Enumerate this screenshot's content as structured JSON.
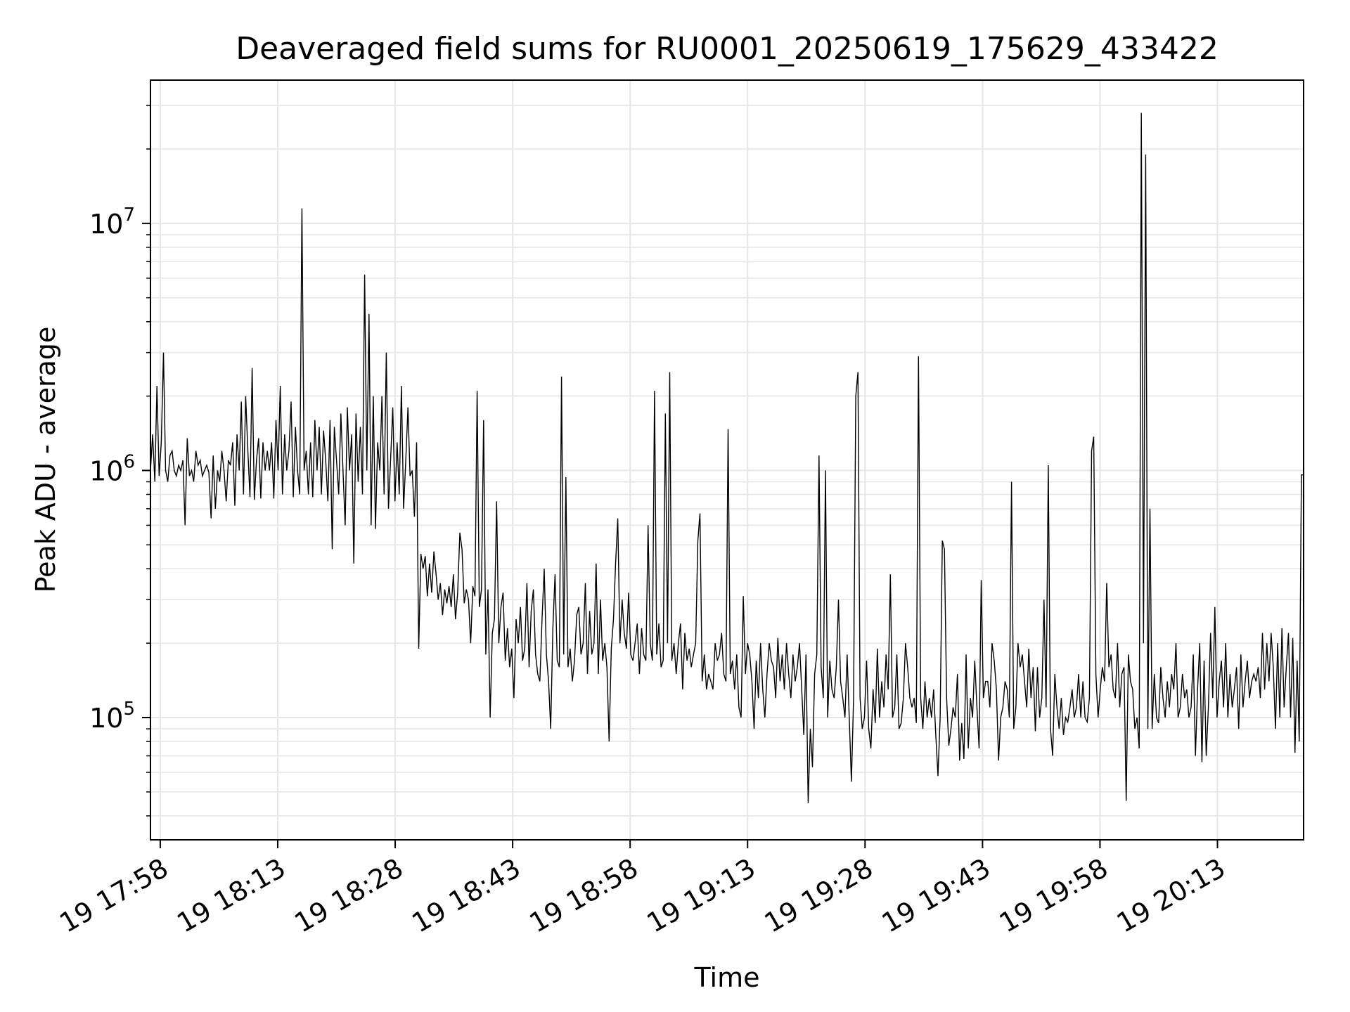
{
  "chart_data": {
    "type": "line",
    "title": "Deaveraged field sums for RU0001_20250619_175629_433422",
    "xlabel": "Time",
    "ylabel": "Peak ADU - average",
    "y_scale": "log",
    "ylim": [
      32000,
      38000000
    ],
    "xlim": [
      "2025-06-19 17:56:45",
      "2025-06-19 20:24:00"
    ],
    "grid": true,
    "line_color": "#000000",
    "x_ticks": [
      "19 17:58",
      "19 18:13",
      "19 18:28",
      "19 18:43",
      "19 18:58",
      "19 19:13",
      "19 19:28",
      "19 19:43",
      "19 19:58",
      "19 20:13"
    ],
    "y_ticks": [
      {
        "base": "10",
        "exp": "5"
      },
      {
        "base": "10",
        "exp": "6"
      },
      {
        "base": "10",
        "exp": "7"
      }
    ],
    "series": [
      {
        "x_start": "2025-06-19 17:56:45",
        "x_end": "2025-06-19 20:24:00",
        "values": [
          1000000,
          1400000,
          900000,
          2200000,
          950000,
          1300000,
          3000000,
          1000000,
          900000,
          1150000,
          1200000,
          1000000,
          950000,
          1050000,
          1000000,
          1100000,
          600000,
          1350000,
          950000,
          1000000,
          900000,
          1200000,
          1050000,
          1100000,
          950000,
          1000000,
          1050000,
          980000,
          640000,
          1150000,
          700000,
          1000000,
          900000,
          1200000,
          1000000,
          750000,
          1100000,
          1050000,
          1300000,
          720000,
          1400000,
          1000000,
          1900000,
          800000,
          2000000,
          1200000,
          780000,
          2600000,
          760000,
          1100000,
          1350000,
          770000,
          1300000,
          1000000,
          1200000,
          1000000,
          1300000,
          770000,
          1600000,
          1000000,
          2200000,
          800000,
          1400000,
          1000000,
          1200000,
          1900000,
          780000,
          1500000,
          1000000,
          800000,
          11500000,
          1000000,
          1200000,
          800000,
          1300000,
          780000,
          1600000,
          1000000,
          1500000,
          800000,
          1450000,
          1100000,
          750000,
          1600000,
          480000,
          1500000,
          1100000,
          800000,
          1700000,
          1000000,
          600000,
          1800000,
          1000000,
          1400000,
          420000,
          1700000,
          900000,
          1500000,
          800000,
          6200000,
          1000000,
          4300000,
          600000,
          2000000,
          580000,
          1300000,
          1000000,
          2000000,
          800000,
          3000000,
          700000,
          1100000,
          1800000,
          750000,
          1300000,
          800000,
          2200000,
          700000,
          1100000,
          1800000,
          950000,
          1000000,
          650000,
          1300000,
          190000,
          460000,
          400000,
          450000,
          310000,
          420000,
          320000,
          470000,
          380000,
          300000,
          350000,
          260000,
          330000,
          290000,
          340000,
          280000,
          380000,
          250000,
          320000,
          560000,
          480000,
          290000,
          330000,
          300000,
          200000,
          340000,
          310000,
          2100000,
          280000,
          330000,
          1600000,
          180000,
          330000,
          100000,
          220000,
          250000,
          750000,
          200000,
          280000,
          320000,
          170000,
          230000,
          160000,
          190000,
          120000,
          250000,
          200000,
          280000,
          170000,
          190000,
          350000,
          160000,
          270000,
          330000,
          180000,
          150000,
          140000,
          250000,
          400000,
          180000,
          140000,
          90000,
          230000,
          380000,
          170000,
          160000,
          2400000,
          180000,
          940000,
          160000,
          190000,
          140000,
          170000,
          260000,
          280000,
          180000,
          200000,
          350000,
          150000,
          270000,
          180000,
          200000,
          420000,
          150000,
          300000,
          170000,
          200000,
          160000,
          80000,
          190000,
          250000,
          420000,
          640000,
          200000,
          300000,
          220000,
          190000,
          320000,
          180000,
          170000,
          200000,
          240000,
          150000,
          230000,
          180000,
          170000,
          600000,
          200000,
          170000,
          2100000,
          180000,
          240000,
          160000,
          170000,
          1700000,
          200000,
          2500000,
          170000,
          200000,
          150000,
          200000,
          240000,
          130000,
          220000,
          170000,
          190000,
          160000,
          180000,
          200000,
          520000,
          670000,
          140000,
          180000,
          130000,
          150000,
          140000,
          130000,
          200000,
          170000,
          180000,
          220000,
          150000,
          140000,
          1470000,
          150000,
          170000,
          130000,
          180000,
          110000,
          100000,
          310000,
          150000,
          200000,
          180000,
          140000,
          90000,
          170000,
          120000,
          200000,
          130000,
          100000,
          150000,
          200000,
          170000,
          160000,
          120000,
          210000,
          140000,
          180000,
          130000,
          200000,
          150000,
          120000,
          180000,
          140000,
          160000,
          200000,
          130000,
          85000,
          180000,
          45000,
          90000,
          63000,
          150000,
          180000,
          1150000,
          160000,
          120000,
          1000000,
          100000,
          170000,
          130000,
          120000,
          160000,
          300000,
          140000,
          120000,
          100000,
          180000,
          100000,
          55000,
          120000,
          2000000,
          2500000,
          120000,
          90000,
          100000,
          170000,
          90000,
          75000,
          130000,
          95000,
          190000,
          100000,
          140000,
          110000,
          180000,
          130000,
          380000,
          100000,
          110000,
          180000,
          90000,
          95000,
          120000,
          200000,
          160000,
          120000,
          110000,
          120000,
          95000,
          2900000,
          120000,
          90000,
          140000,
          100000,
          120000,
          100000,
          130000,
          85000,
          58000,
          100000,
          520000,
          480000,
          120000,
          77000,
          90000,
          110000,
          100000,
          150000,
          67000,
          95000,
          68000,
          180000,
          75000,
          120000,
          100000,
          170000,
          110000,
          75000,
          360000,
          120000,
          140000,
          140000,
          110000,
          200000,
          170000,
          130000,
          67000,
          100000,
          110000,
          140000,
          130000,
          100000,
          900000,
          90000,
          110000,
          200000,
          160000,
          180000,
          140000,
          110000,
          190000,
          120000,
          160000,
          88000,
          160000,
          100000,
          120000,
          300000,
          110000,
          1050000,
          90000,
          70000,
          150000,
          110000,
          90000,
          120000,
          85000,
          100000,
          96000,
          110000,
          130000,
          100000,
          110000,
          150000,
          100000,
          140000,
          100000,
          96000,
          120000,
          1200000,
          1370000,
          150000,
          100000,
          130000,
          160000,
          140000,
          350000,
          160000,
          180000,
          130000,
          120000,
          200000,
          110000,
          150000,
          160000,
          46000,
          180000,
          140000,
          130000,
          90000,
          100000,
          75000,
          28000000,
          200000,
          19000000,
          90000,
          700000,
          90000,
          150000,
          100000,
          95000,
          160000,
          120000,
          100000,
          140000,
          110000,
          150000,
          130000,
          200000,
          100000,
          110000,
          150000,
          120000,
          130000,
          100000,
          110000,
          180000,
          70000,
          130000,
          200000,
          66000,
          170000,
          70000,
          110000,
          220000,
          120000,
          280000,
          100000,
          140000,
          170000,
          110000,
          200000,
          100000,
          150000,
          110000,
          130000,
          160000,
          90000,
          180000,
          110000,
          140000,
          170000,
          120000,
          140000,
          150000,
          140000,
          160000,
          120000,
          220000,
          130000,
          200000,
          140000,
          220000,
          160000,
          90000,
          200000,
          100000,
          230000,
          110000,
          160000,
          220000,
          100000,
          210000,
          72000,
          170000,
          80000,
          960000,
          960000
        ]
      }
    ]
  }
}
